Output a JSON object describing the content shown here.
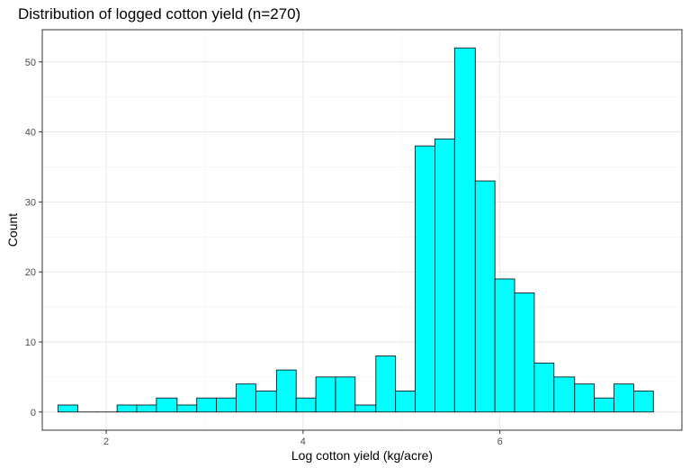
{
  "chart_data": {
    "type": "bar",
    "title": "Distribution of logged cotton yield (n=270)",
    "xlabel": "Log cotton yield (kg/acre)",
    "ylabel": "Count",
    "xlim": [
      1.35,
      7.85
    ],
    "ylim": [
      -2.6,
      54.6
    ],
    "xticks": [
      2,
      4,
      6
    ],
    "yticks": [
      0,
      10,
      20,
      30,
      40,
      50
    ],
    "grid": true,
    "bar_fill": "#00FFFF",
    "bar_stroke": "#000000",
    "bins": [
      {
        "x0": 1.51,
        "x1": 1.71,
        "count": 1
      },
      {
        "x0": 1.71,
        "x1": 1.91,
        "count": 0
      },
      {
        "x0": 1.91,
        "x1": 2.11,
        "count": 0
      },
      {
        "x0": 2.11,
        "x1": 2.31,
        "count": 1
      },
      {
        "x0": 2.31,
        "x1": 2.51,
        "count": 1
      },
      {
        "x0": 2.51,
        "x1": 2.72,
        "count": 2
      },
      {
        "x0": 2.72,
        "x1": 2.92,
        "count": 1
      },
      {
        "x0": 2.92,
        "x1": 3.12,
        "count": 2
      },
      {
        "x0": 3.12,
        "x1": 3.32,
        "count": 2
      },
      {
        "x0": 3.32,
        "x1": 3.52,
        "count": 4
      },
      {
        "x0": 3.52,
        "x1": 3.73,
        "count": 3
      },
      {
        "x0": 3.73,
        "x1": 3.93,
        "count": 6
      },
      {
        "x0": 3.93,
        "x1": 4.13,
        "count": 2
      },
      {
        "x0": 4.13,
        "x1": 4.33,
        "count": 5
      },
      {
        "x0": 4.33,
        "x1": 4.53,
        "count": 5
      },
      {
        "x0": 4.53,
        "x1": 4.74,
        "count": 1
      },
      {
        "x0": 4.74,
        "x1": 4.94,
        "count": 8
      },
      {
        "x0": 4.94,
        "x1": 5.14,
        "count": 3
      },
      {
        "x0": 5.14,
        "x1": 5.34,
        "count": 38
      },
      {
        "x0": 5.34,
        "x1": 5.54,
        "count": 39
      },
      {
        "x0": 5.54,
        "x1": 5.75,
        "count": 52
      },
      {
        "x0": 5.75,
        "x1": 5.95,
        "count": 33
      },
      {
        "x0": 5.95,
        "x1": 6.15,
        "count": 19
      },
      {
        "x0": 6.15,
        "x1": 6.35,
        "count": 17
      },
      {
        "x0": 6.35,
        "x1": 6.55,
        "count": 7
      },
      {
        "x0": 6.55,
        "x1": 6.76,
        "count": 5
      },
      {
        "x0": 6.76,
        "x1": 6.96,
        "count": 4
      },
      {
        "x0": 6.96,
        "x1": 7.16,
        "count": 2
      },
      {
        "x0": 7.16,
        "x1": 7.36,
        "count": 4
      },
      {
        "x0": 7.36,
        "x1": 7.56,
        "count": 3
      }
    ]
  }
}
